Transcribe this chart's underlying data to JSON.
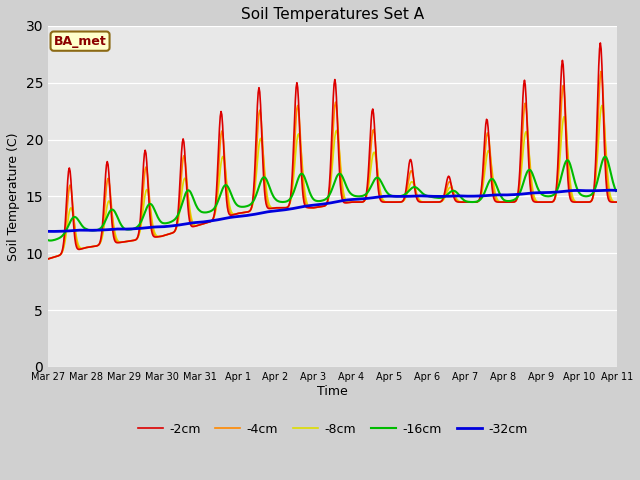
{
  "title": "Soil Temperatures Set A",
  "xlabel": "Time",
  "ylabel": "Soil Temperature (C)",
  "annotation": "BA_met",
  "ylim": [
    0,
    30
  ],
  "yticks": [
    0,
    5,
    10,
    15,
    20,
    25,
    30
  ],
  "fig_bg_color": "#d0d0d0",
  "plot_bg_color": "#e8e8e8",
  "legend_entries": [
    "-2cm",
    "-4cm",
    "-8cm",
    "-16cm",
    "-32cm"
  ],
  "line_colors": [
    "#dd0000",
    "#ff8800",
    "#dddd00",
    "#00bb00",
    "#0000dd"
  ],
  "line_widths": [
    1.2,
    1.2,
    1.2,
    1.5,
    2.0
  ],
  "xtick_labels": [
    "Mar 27",
    "Mar 28",
    "Mar 29",
    "Mar 30",
    "Mar 31",
    "Apr 1",
    "Apr 2",
    "Apr 3",
    "Apr 4",
    "Apr 5",
    "Apr 6",
    "Apr 7",
    "Apr 8",
    "Apr 9",
    "Apr 10",
    "Apr 11"
  ],
  "num_days": 15,
  "samples_per_day": 48
}
